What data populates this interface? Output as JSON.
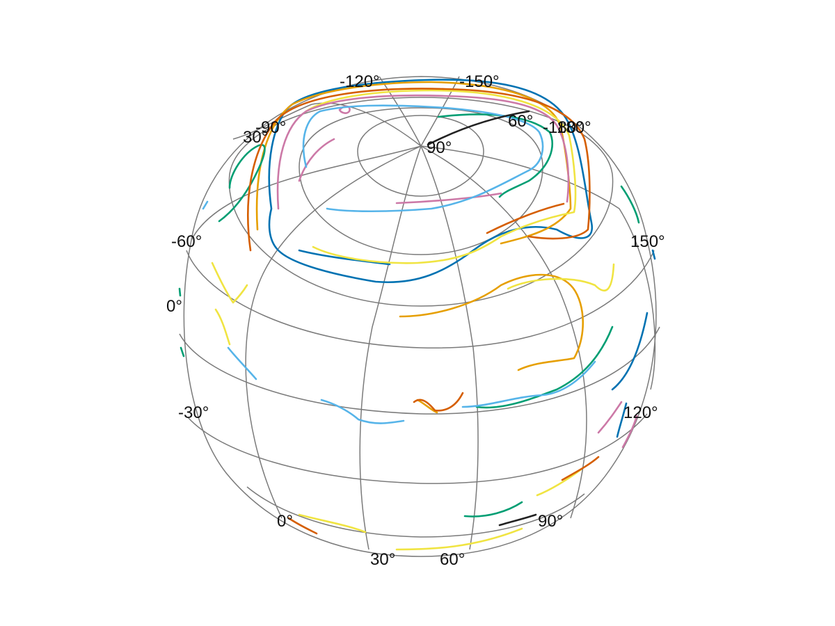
{
  "map": {
    "type": "orthographic-globe",
    "graticule": {
      "color": "#7a7a7a"
    },
    "labels": [
      {
        "id": "lab-n120",
        "text": "-120°"
      },
      {
        "id": "lab-n150",
        "text": "-150°"
      },
      {
        "id": "lab-n90",
        "text": "-90°"
      },
      {
        "id": "lab-30t",
        "text": "30°"
      },
      {
        "id": "lab-60t",
        "text": "60°"
      },
      {
        "id": "lab-180a",
        "text": "-180°"
      },
      {
        "id": "lab-180b",
        "text": "180°"
      },
      {
        "id": "lab-90p",
        "text": "90°"
      },
      {
        "id": "lab-n60",
        "text": "-60°"
      },
      {
        "id": "lab-150",
        "text": "150°"
      },
      {
        "id": "lab-0a",
        "text": "0°"
      },
      {
        "id": "lab-n30",
        "text": "-30°"
      },
      {
        "id": "lab-120",
        "text": "120°"
      },
      {
        "id": "lab-0b",
        "text": "0°"
      },
      {
        "id": "lab-90b",
        "text": "90°"
      },
      {
        "id": "lab-30b",
        "text": "30°"
      },
      {
        "id": "lab-60b",
        "text": "60°"
      }
    ],
    "tracks": [
      {
        "id": "track-blue",
        "color": "#0072b2"
      },
      {
        "id": "track-orange",
        "color": "#e69f00"
      },
      {
        "id": "track-green",
        "color": "#009e73"
      },
      {
        "id": "track-yellow",
        "color": "#f0e442"
      },
      {
        "id": "track-pink",
        "color": "#cc79a7"
      },
      {
        "id": "track-skyblue",
        "color": "#56b4e9"
      },
      {
        "id": "track-vermillion",
        "color": "#d55e00"
      },
      {
        "id": "track-black",
        "color": "#222222"
      }
    ]
  }
}
